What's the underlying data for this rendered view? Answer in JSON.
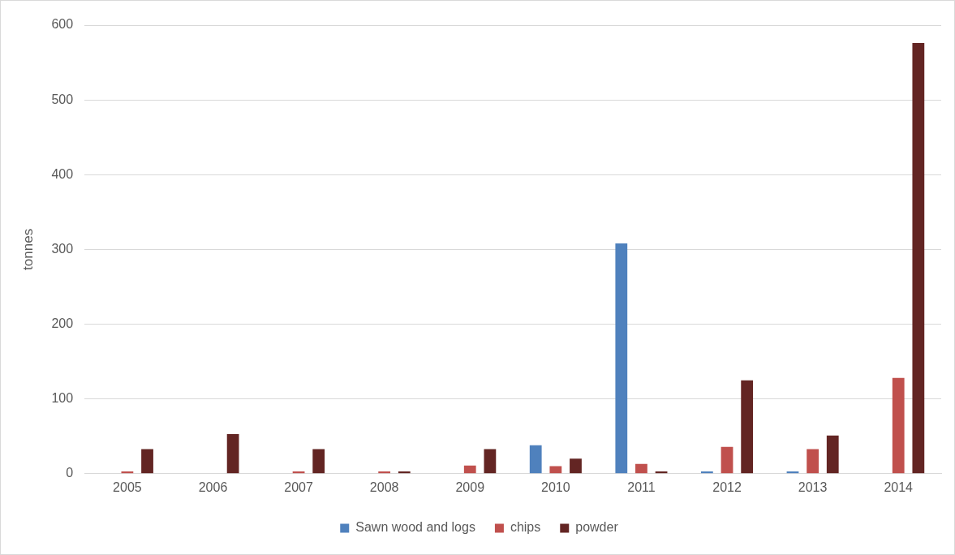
{
  "chart_data": {
    "type": "bar",
    "ylabel": "tonnes",
    "categories": [
      "2005",
      "2006",
      "2007",
      "2008",
      "2009",
      "2010",
      "2011",
      "2012",
      "2013",
      "2014"
    ],
    "series": [
      {
        "name": "Sawn wood and logs",
        "color": "#4f81bd",
        "values": [
          0,
          0,
          0,
          0,
          0,
          38,
          308,
          3,
          3,
          0
        ]
      },
      {
        "name": "chips",
        "color": "#c0504d",
        "values": [
          3,
          0,
          3,
          3,
          11,
          10,
          13,
          36,
          33,
          128
        ]
      },
      {
        "name": "powder",
        "color": "#632523",
        "values": [
          33,
          53,
          33,
          3,
          33,
          20,
          3,
          125,
          51,
          576
        ]
      }
    ],
    "ylim": [
      0,
      600
    ],
    "yticks": [
      0,
      100,
      200,
      300,
      400,
      500,
      600
    ],
    "grid": "y",
    "legend": "bottom"
  }
}
